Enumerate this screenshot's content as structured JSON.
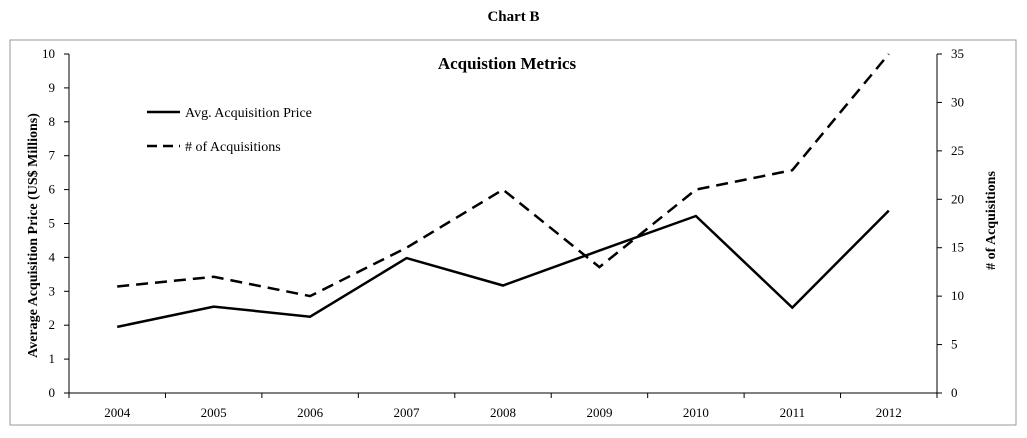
{
  "page_title": "Chart B",
  "chart_data": {
    "type": "line",
    "title": "Acquistion Metrics",
    "categories": [
      "2004",
      "2005",
      "2006",
      "2007",
      "2008",
      "2009",
      "2010",
      "2011",
      "2012"
    ],
    "series": [
      {
        "name": "Avg. Acquisition Price",
        "axis": "left",
        "line_style": "solid",
        "color": "#000000",
        "values": [
          1.95,
          2.55,
          2.25,
          3.98,
          3.17,
          4.2,
          5.22,
          2.52,
          5.38
        ]
      },
      {
        "name": "# of Acquisitions",
        "axis": "right",
        "line_style": "dashed",
        "color": "#000000",
        "values": [
          11,
          12,
          10,
          15,
          21,
          13,
          21,
          23,
          35
        ]
      }
    ],
    "ylabel_left": "Average Acquisition Price (US$ Millions)",
    "ylabel_right": "# of Acquisitions",
    "ylim_left": [
      0,
      10
    ],
    "ylim_right": [
      0,
      35
    ],
    "yticks_left": [
      "0",
      "1",
      "2",
      "3",
      "4",
      "5",
      "6",
      "7",
      "8",
      "9",
      "10"
    ],
    "yticks_right": [
      "0",
      "5",
      "10",
      "15",
      "20",
      "25",
      "30",
      "35"
    ],
    "grid": false,
    "legend_position": "top-left"
  }
}
